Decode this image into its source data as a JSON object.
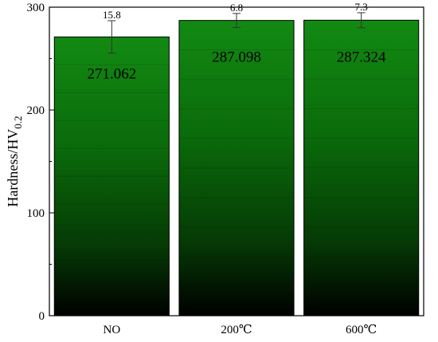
{
  "chart_data": {
    "type": "bar",
    "categories": [
      "NO",
      "200℃",
      "600℃"
    ],
    "values": [
      271.062,
      287.098,
      287.324
    ],
    "value_labels": [
      "271.062",
      "287.098",
      "287.324"
    ],
    "errors": [
      15.8,
      6.8,
      7.3
    ],
    "error_labels": [
      "15.8",
      "6.8",
      "7.3"
    ],
    "ylabel": "Hardness/HV",
    "ylabel_sub": "0.2",
    "ylim": [
      0,
      300
    ],
    "yticks": [
      0,
      100,
      200,
      300
    ],
    "ytick_labels": [
      "0",
      "100",
      "200",
      "300"
    ],
    "grid": false,
    "bar_fill": "vertical gradient, black at base to green at top",
    "colors": {
      "bar_top": "#128a12",
      "bar_bottom": "#000000",
      "axis": "#000000"
    }
  }
}
